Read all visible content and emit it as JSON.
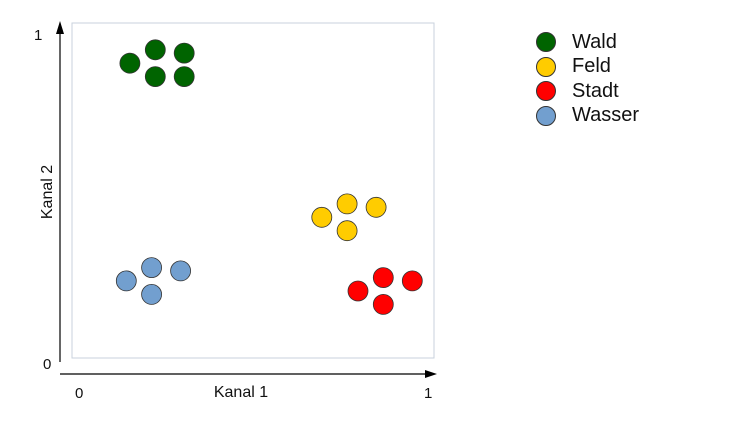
{
  "chart_data": {
    "type": "scatter",
    "xlabel": "Kanal 1",
    "ylabel": "Kanal 2",
    "xlim": [
      0,
      1
    ],
    "ylim": [
      0,
      1
    ],
    "x_ticks": [
      "0",
      "1"
    ],
    "y_ticks": [
      "0",
      "1"
    ],
    "grid": false,
    "legend_position": "top-right, outside plot",
    "series": [
      {
        "name": "Wald",
        "color": "#006400",
        "points": [
          [
            0.16,
            0.88
          ],
          [
            0.23,
            0.92
          ],
          [
            0.31,
            0.91
          ],
          [
            0.23,
            0.84
          ],
          [
            0.31,
            0.84
          ]
        ]
      },
      {
        "name": "Feld",
        "color": "#FFCC00",
        "points": [
          [
            0.69,
            0.42
          ],
          [
            0.76,
            0.46
          ],
          [
            0.84,
            0.45
          ],
          [
            0.76,
            0.38
          ]
        ]
      },
      {
        "name": "Stadt",
        "color": "#FF0000",
        "points": [
          [
            0.79,
            0.2
          ],
          [
            0.86,
            0.24
          ],
          [
            0.94,
            0.23
          ],
          [
            0.86,
            0.16
          ]
        ]
      },
      {
        "name": "Wasser",
        "color": "#729FCF",
        "points": [
          [
            0.15,
            0.23
          ],
          [
            0.22,
            0.27
          ],
          [
            0.3,
            0.26
          ],
          [
            0.22,
            0.19
          ]
        ]
      }
    ]
  }
}
